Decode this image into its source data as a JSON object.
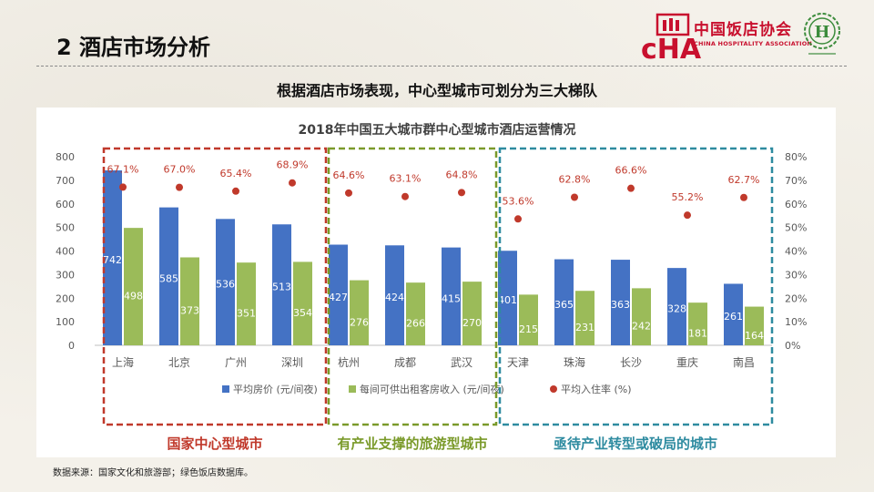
{
  "slide": {
    "title": "2 酒店市场分析",
    "subtitle": "根据酒店市场表现，中心型城市可划分为三大梯队",
    "source": "数据来源：国家文化和旅游部；绿色饭店数据库。"
  },
  "logos": {
    "cha_cn": "中国饭店协会",
    "cha_en": "CHINA HOSPITALITY ASSOCIATION",
    "cha_mark": "cHA"
  },
  "colors": {
    "bar_price": "#4472c4",
    "bar_revpar": "#9bbb59",
    "dot_occ": "#c0392b",
    "tier1": "#c0392b",
    "tier2": "#7a9a2a",
    "tier3": "#2e8ba0"
  },
  "chart_data": {
    "type": "bar",
    "title": "2018年中国五大城市群中心型城市酒店运营情况",
    "categories": [
      "上海",
      "北京",
      "广州",
      "深圳",
      "杭州",
      "成都",
      "武汉",
      "天津",
      "珠海",
      "长沙",
      "重庆",
      "南昌"
    ],
    "series": [
      {
        "name": "平均房价 (元/间夜)",
        "type": "bar",
        "axis": "left",
        "values": [
          742,
          585,
          536,
          513,
          427,
          424,
          415,
          401,
          365,
          363,
          328,
          261
        ]
      },
      {
        "name": "每间可供出租客房收入 (元/间夜)",
        "type": "bar",
        "axis": "left",
        "values": [
          498,
          373,
          351,
          354,
          276,
          266,
          270,
          215,
          231,
          242,
          181,
          164
        ]
      },
      {
        "name": "平均入住率 (%)",
        "type": "scatter",
        "axis": "right",
        "values": [
          67.1,
          67.0,
          65.4,
          68.9,
          64.6,
          63.1,
          64.8,
          53.6,
          62.8,
          66.6,
          55.2,
          62.7
        ],
        "labels": [
          "67.1%",
          "67.0%",
          "65.4%",
          "68.9%",
          "64.6%",
          "63.1%",
          "64.8%",
          "53.6%",
          "62.8%",
          "66.6%",
          "55.2%",
          "62.7%"
        ]
      }
    ],
    "y_left": {
      "min": 0,
      "max": 800,
      "ticks": [
        "0",
        "100",
        "200",
        "300",
        "400",
        "500",
        "600",
        "700",
        "800"
      ]
    },
    "y_right": {
      "min": 0,
      "max": 80,
      "ticks": [
        "0%",
        "10%",
        "20%",
        "30%",
        "40%",
        "50%",
        "60%",
        "70%",
        "80%"
      ]
    },
    "grid": false,
    "legend_position": "bottom",
    "groups": [
      {
        "label": "国家中心型城市",
        "from": 0,
        "to": 3,
        "color_key": "tier1"
      },
      {
        "label": "有产业支撑的旅游型城市",
        "from": 4,
        "to": 6,
        "color_key": "tier2"
      },
      {
        "label": "亟待产业转型或破局的城市",
        "from": 7,
        "to": 11,
        "color_key": "tier3"
      }
    ]
  }
}
